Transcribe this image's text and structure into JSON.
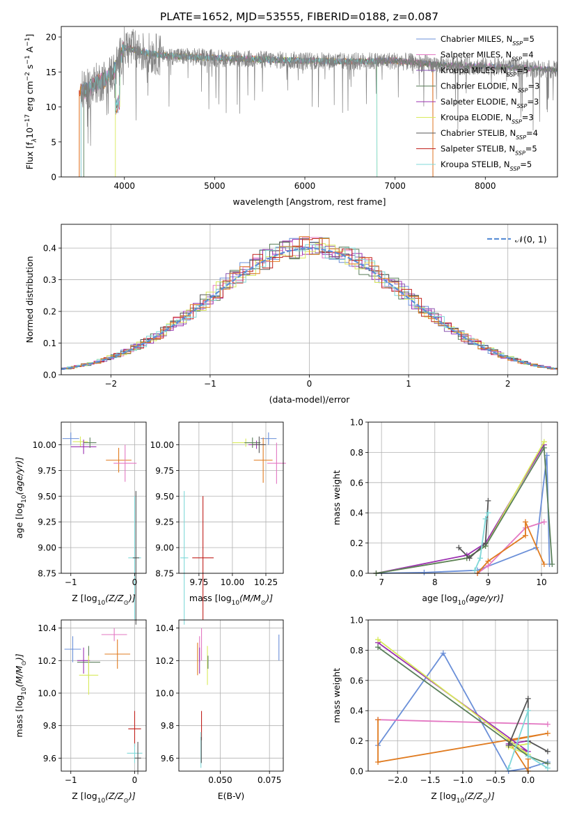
{
  "title": "PLATE=1652, MJD=53555, FIBERID=0188, z=0.087",
  "colors": {
    "chabrier_miles": "#6a8fd8",
    "salpeter_miles": "#e377c2",
    "kroupa_miles": "#8a56b0",
    "chabrier_elodie": "#5a7f5a",
    "salpeter_elodie": "#9b30b0",
    "kroupa_elodie": "#d8ea5a",
    "chabrier_stelib": "#555555",
    "salpeter_stelib": "#c0201c",
    "kroupa_stelib": "#7fd8d8",
    "orange": "#e07b20",
    "normal_curve": "#5b8fd6"
  },
  "chart_data": [
    {
      "id": "spectrum",
      "type": "line",
      "xlabel": "wavelength [Angstrom, rest frame]",
      "ylabel": "Flux [f",
      "ylabel_parts": {
        "lambda": "λ",
        "unit": "10",
        "exp1": "−17",
        "mid": " erg cm",
        "exp2": "−2",
        "s": " s",
        "exp3": "−1",
        "A": " A",
        "exp4": "−1",
        "close": "]"
      },
      "xlim": [
        3300,
        8800
      ],
      "ylim": [
        0,
        21.5
      ],
      "xticks": [
        4000,
        5000,
        6000,
        7000,
        8000
      ],
      "yticks": [
        0,
        5,
        10,
        15,
        20
      ],
      "grid": false,
      "legend_position": "top-right",
      "legend": [
        {
          "pre": "Chabrier MILES, N",
          "sub": "SSP",
          "post": "=5",
          "color_key": "chabrier_miles"
        },
        {
          "pre": "Salpeter MILES, N",
          "sub": "SSP",
          "post": "=4",
          "color_key": "salpeter_miles"
        },
        {
          "pre": "Kroupa MILES, N",
          "sub": "SSP",
          "post": "=5",
          "color_key": "kroupa_miles"
        },
        {
          "pre": "Chabrier ELODIE, N",
          "sub": "SSP",
          "post": "=3",
          "color_key": "chabrier_elodie"
        },
        {
          "pre": "Salpeter ELODIE, N",
          "sub": "SSP",
          "post": "=3",
          "color_key": "salpeter_elodie"
        },
        {
          "pre": "Kroupa ELODIE, N",
          "sub": "SSP",
          "post": "=3",
          "color_key": "kroupa_elodie"
        },
        {
          "pre": "Chabrier STELIB, N",
          "sub": "SSP",
          "post": "=4",
          "color_key": "chabrier_stelib"
        },
        {
          "pre": "Salpeter STELIB, N",
          "sub": "SSP",
          "post": "=5",
          "color_key": "salpeter_stelib"
        },
        {
          "pre": "Kroupa STELIB, N",
          "sub": "SSP",
          "post": "=5",
          "color_key": "kroupa_stelib"
        }
      ],
      "continuum": {
        "x": [
          3500,
          3600,
          3700,
          3800,
          3900,
          4000,
          4200,
          4500,
          5000,
          5500,
          6000,
          6500,
          7000,
          7500,
          8000,
          8500,
          8800
        ],
        "y": [
          12.0,
          12.5,
          13.5,
          14.0,
          15.5,
          18.5,
          17.8,
          17.3,
          17.0,
          16.8,
          16.6,
          16.5,
          16.6,
          16.0,
          15.8,
          15.5,
          15.3
        ]
      }
    },
    {
      "id": "residuals",
      "type": "line",
      "xlabel": "(data-model)/error",
      "ylabel": "Normed distribution",
      "xlim": [
        -2.5,
        2.5
      ],
      "ylim": [
        0,
        0.475
      ],
      "xticks": [
        -2,
        -1,
        0,
        1,
        2
      ],
      "yticks": [
        0.0,
        0.1,
        0.2,
        0.3,
        0.4
      ],
      "grid": true,
      "legend_position": "top-right",
      "legend_label": "𝒩(0, 1)"
    },
    {
      "id": "age_vs_Z",
      "type": "scatter",
      "xlabel": "Z [log",
      "xlabel_parts": {
        "sub": "10",
        "expr": "(Z/Z",
        "sun": "⊙",
        "close": ")]"
      },
      "ylabel": "age  [log",
      "ylabel_parts": {
        "sub": "10",
        "expr": "(age/yr)]"
      },
      "xlim": [
        -1.15,
        0.18
      ],
      "ylim": [
        8.75,
        10.22
      ],
      "xticks": [
        -1,
        0
      ],
      "yticks": [
        8.75,
        9.0,
        9.25,
        9.5,
        9.75,
        10.0
      ],
      "grid": true,
      "points": [
        {
          "x": -1.0,
          "y": 10.06,
          "ex": 0.13,
          "ey": 0.06,
          "color_key": "chabrier_miles"
        },
        {
          "x": -0.85,
          "y": 10.03,
          "ex": 0.12,
          "ey": 0.05,
          "color_key": "kroupa_elodie"
        },
        {
          "x": -0.8,
          "y": 9.98,
          "ex": 0.2,
          "ey": 0.07,
          "color_key": "salpeter_elodie"
        },
        {
          "x": -0.7,
          "y": 10.02,
          "ex": 0.1,
          "ey": 0.05,
          "color_key": "chabrier_elodie"
        },
        {
          "x": -0.25,
          "y": 9.85,
          "ex": 0.2,
          "ey": 0.12,
          "color_key": "orange"
        },
        {
          "x": -0.15,
          "y": 9.82,
          "ex": 0.18,
          "ey": 0.18,
          "color_key": "salpeter_miles"
        },
        {
          "x": 0.0,
          "y": 8.9,
          "ex": 0.1,
          "ey": 0.6,
          "color_key": "kroupa_stelib"
        },
        {
          "x": 0.02,
          "y": 8.9,
          "ex": 0.05,
          "ey": 0.65,
          "color_key": "chabrier_stelib"
        }
      ]
    },
    {
      "id": "age_vs_mass",
      "type": "scatter",
      "xlabel": "mass [log",
      "xlabel_parts": {
        "sub": "10",
        "expr": "(M/M",
        "sun": "⊙",
        "close": ")]"
      },
      "ylabel": "",
      "xlim": [
        9.6,
        10.38
      ],
      "ylim": [
        8.75,
        10.22
      ],
      "xticks": [
        9.75,
        10.0,
        10.25
      ],
      "xticklabels": [
        "9.75",
        "10.00",
        "10.25"
      ],
      "yticks": [
        8.75,
        9.0,
        9.25,
        9.5,
        9.75,
        10.0
      ],
      "grid": true,
      "points": [
        {
          "x": 10.27,
          "y": 10.06,
          "ex": 0.06,
          "ey": 0.06,
          "color_key": "chabrier_miles"
        },
        {
          "x": 10.1,
          "y": 10.02,
          "ex": 0.1,
          "ey": 0.04,
          "color_key": "kroupa_elodie"
        },
        {
          "x": 10.18,
          "y": 10.0,
          "ex": 0.06,
          "ey": 0.04,
          "color_key": "salpeter_elodie"
        },
        {
          "x": 10.15,
          "y": 10.02,
          "ex": 0.06,
          "ey": 0.05,
          "color_key": "chabrier_elodie"
        },
        {
          "x": 10.23,
          "y": 9.85,
          "ex": 0.07,
          "ey": 0.22,
          "color_key": "orange"
        },
        {
          "x": 10.33,
          "y": 9.82,
          "ex": 0.07,
          "ey": 0.2,
          "color_key": "salpeter_miles"
        },
        {
          "x": 9.64,
          "y": 8.9,
          "ex": 0.03,
          "ey": 0.65,
          "color_key": "kroupa_stelib"
        },
        {
          "x": 9.78,
          "y": 8.9,
          "ex": 0.08,
          "ey": 0.6,
          "color_key": "salpeter_stelib"
        },
        {
          "x": 10.2,
          "y": 10.0,
          "ex": 0.05,
          "ey": 0.08,
          "color_key": "chabrier_stelib"
        }
      ]
    },
    {
      "id": "weight_vs_age",
      "type": "line",
      "xlabel": "age  [log",
      "xlabel_parts": {
        "sub": "10",
        "expr": "(age/yr)]"
      },
      "ylabel": "mass weight",
      "xlim": [
        6.75,
        10.3
      ],
      "ylim": [
        0,
        1.0
      ],
      "xticks": [
        7,
        8,
        9,
        10
      ],
      "yticks": [
        0.0,
        0.2,
        0.4,
        0.6,
        0.8,
        1.0
      ],
      "grid": true,
      "series": [
        {
          "color_key": "chabrier_miles",
          "x": [
            6.9,
            7.8,
            8.8,
            9.9,
            10.1,
            10.15
          ],
          "y": [
            0.0,
            0.005,
            0.02,
            0.17,
            0.78,
            0.06
          ]
        },
        {
          "color_key": "salpeter_miles",
          "x": [
            8.8,
            9.0,
            9.7,
            10.05
          ],
          "y": [
            0.0,
            0.05,
            0.3,
            0.34
          ]
        },
        {
          "color_key": "orange",
          "x": [
            8.8,
            9.0,
            9.7,
            9.7,
            10.05
          ],
          "y": [
            0.0,
            0.08,
            0.25,
            0.34,
            0.06
          ]
        },
        {
          "color_key": "salpeter_elodie",
          "x": [
            6.9,
            8.6,
            8.95,
            10.05
          ],
          "y": [
            0.0,
            0.12,
            0.2,
            0.85
          ]
        },
        {
          "color_key": "kroupa_elodie",
          "x": [
            6.9,
            8.6,
            8.95,
            10.05
          ],
          "y": [
            0.0,
            0.1,
            0.18,
            0.87
          ]
        },
        {
          "color_key": "chabrier_elodie",
          "x": [
            6.9,
            8.6,
            8.95,
            10.05,
            10.2
          ],
          "y": [
            0.0,
            0.1,
            0.18,
            0.83,
            0.06
          ]
        },
        {
          "color_key": "chabrier_stelib",
          "x": [
            8.45,
            8.65,
            8.95,
            9.0
          ],
          "y": [
            0.17,
            0.1,
            0.2,
            0.48
          ]
        },
        {
          "color_key": "kroupa_stelib",
          "x": [
            8.75,
            8.85,
            8.95,
            9.0
          ],
          "y": [
            0.02,
            0.1,
            0.36,
            0.4
          ]
        }
      ]
    },
    {
      "id": "mass_vs_Z",
      "type": "scatter",
      "xlabel": "Z [log",
      "xlabel_parts": {
        "sub": "10",
        "expr": "(Z/Z",
        "sun": "⊙",
        "close": ")]"
      },
      "ylabel": "mass [log",
      "ylabel_parts": {
        "sub": "10",
        "expr": "(M/M",
        "sun": "⊙",
        "close": ")]"
      },
      "xlim": [
        -1.15,
        0.18
      ],
      "ylim": [
        9.52,
        10.45
      ],
      "xticks": [
        -1,
        0
      ],
      "yticks": [
        9.6,
        9.8,
        10.0,
        10.2,
        10.4
      ],
      "grid": true,
      "points": [
        {
          "x": -0.97,
          "y": 10.27,
          "ex": 0.13,
          "ey": 0.08,
          "color_key": "chabrier_miles"
        },
        {
          "x": -0.8,
          "y": 10.2,
          "ex": 0.1,
          "ey": 0.08,
          "color_key": "salpeter_elodie"
        },
        {
          "x": -0.72,
          "y": 10.19,
          "ex": 0.18,
          "ey": 0.1,
          "color_key": "chabrier_elodie"
        },
        {
          "x": -0.72,
          "y": 10.11,
          "ex": 0.15,
          "ey": 0.12,
          "color_key": "kroupa_elodie"
        },
        {
          "x": -0.32,
          "y": 10.36,
          "ex": 0.2,
          "ey": 0.04,
          "color_key": "salpeter_miles"
        },
        {
          "x": -0.27,
          "y": 10.24,
          "ex": 0.2,
          "ey": 0.09,
          "color_key": "orange"
        },
        {
          "x": 0.0,
          "y": 9.78,
          "ex": 0.1,
          "ey": 0.11,
          "color_key": "salpeter_stelib"
        },
        {
          "x": 0.0,
          "y": 9.63,
          "ex": 0.12,
          "ey": 0.06,
          "color_key": "kroupa_stelib"
        },
        {
          "x": 0.05,
          "y": 9.6,
          "ex": 0.05,
          "ey": 0.1,
          "color_key": "chabrier_stelib"
        }
      ]
    },
    {
      "id": "mass_vs_ebv",
      "type": "scatter",
      "xlabel": "E(B-V)",
      "ylabel": "",
      "xlim": [
        0.029,
        0.082
      ],
      "ylim": [
        9.52,
        10.45
      ],
      "xticks": [
        0.05,
        0.075
      ],
      "xticklabels": [
        "0.050",
        "0.075"
      ],
      "yticks": [
        9.6,
        9.8,
        10.0,
        10.2,
        10.4
      ],
      "grid": true,
      "points": [
        {
          "x": 0.0395,
          "y": 10.27,
          "ex": 0.0,
          "ey": 0.08,
          "color_key": "salpeter_miles"
        },
        {
          "x": 0.0405,
          "y": 10.3,
          "ex": 0.0,
          "ey": 0.1,
          "color_key": "salpeter_miles"
        },
        {
          "x": 0.0385,
          "y": 10.21,
          "ex": 0.0,
          "ey": 0.1,
          "color_key": "orange"
        },
        {
          "x": 0.0395,
          "y": 10.2,
          "ex": 0.0,
          "ey": 0.08,
          "color_key": "salpeter_elodie"
        },
        {
          "x": 0.0435,
          "y": 10.17,
          "ex": 0.0,
          "ey": 0.12,
          "color_key": "kroupa_elodie"
        },
        {
          "x": 0.0438,
          "y": 10.19,
          "ex": 0.0,
          "ey": 0.04,
          "color_key": "chabrier_elodie"
        },
        {
          "x": 0.0405,
          "y": 9.8,
          "ex": 0.0,
          "ey": 0.09,
          "color_key": "salpeter_stelib"
        },
        {
          "x": 0.0402,
          "y": 9.65,
          "ex": 0.0,
          "ey": 0.11,
          "color_key": "kroupa_stelib"
        },
        {
          "x": 0.0404,
          "y": 9.65,
          "ex": 0.0,
          "ey": 0.08,
          "color_key": "chabrier_stelib"
        },
        {
          "x": 0.0798,
          "y": 10.28,
          "ex": 0.0,
          "ey": 0.08,
          "color_key": "chabrier_miles"
        }
      ]
    },
    {
      "id": "weight_vs_Z",
      "type": "line",
      "xlabel": "Z [log",
      "xlabel_parts": {
        "sub": "10",
        "expr": "(Z/Z",
        "sun": "⊙",
        "close": ")]"
      },
      "ylabel": "mass weight",
      "xlim": [
        -2.45,
        0.45
      ],
      "ylim": [
        0,
        1.0
      ],
      "xticks": [
        -2.0,
        -1.5,
        -1.0,
        -0.5,
        0.0
      ],
      "xticklabels": [
        "−2.0",
        "−1.5",
        "−1.0",
        "−0.5",
        "0.0"
      ],
      "yticks": [
        0.0,
        0.2,
        0.4,
        0.6,
        0.8,
        1.0
      ],
      "grid": true,
      "series": [
        {
          "color_key": "chabrier_miles",
          "x": [
            -2.3,
            -1.3,
            -0.3,
            0.0,
            0.3
          ],
          "y": [
            0.17,
            0.78,
            0.0,
            0.02,
            0.06
          ]
        },
        {
          "color_key": "salpeter_miles",
          "x": [
            -2.3,
            0.3
          ],
          "y": [
            0.34,
            0.31
          ]
        },
        {
          "color_key": "orange",
          "x": [
            -2.3,
            -2.3,
            0.3,
            -0.3,
            0.0,
            0.0
          ],
          "y": [
            0.34,
            0.06,
            0.25,
            0.2,
            0.0,
            0.08
          ]
        },
        {
          "color_key": "salpeter_elodie",
          "x": [
            -2.3,
            0.0,
            -0.3,
            0.0
          ],
          "y": [
            0.85,
            0.13,
            0.18,
            0.2
          ]
        },
        {
          "color_key": "kroupa_elodie",
          "x": [
            -2.3,
            0.0,
            -0.3,
            0.0
          ],
          "y": [
            0.87,
            0.11,
            0.16,
            0.18
          ]
        },
        {
          "color_key": "chabrier_elodie",
          "x": [
            -2.3,
            0.0,
            0.3
          ],
          "y": [
            0.82,
            0.1,
            0.05
          ]
        },
        {
          "color_key": "chabrier_stelib",
          "x": [
            -0.3,
            0.0,
            0.0,
            0.3
          ],
          "y": [
            0.17,
            0.48,
            0.2,
            0.13
          ]
        },
        {
          "color_key": "kroupa_stelib",
          "x": [
            -0.3,
            0.0,
            0.0,
            0.3
          ],
          "y": [
            0.02,
            0.4,
            0.1,
            0.02
          ]
        }
      ]
    }
  ]
}
